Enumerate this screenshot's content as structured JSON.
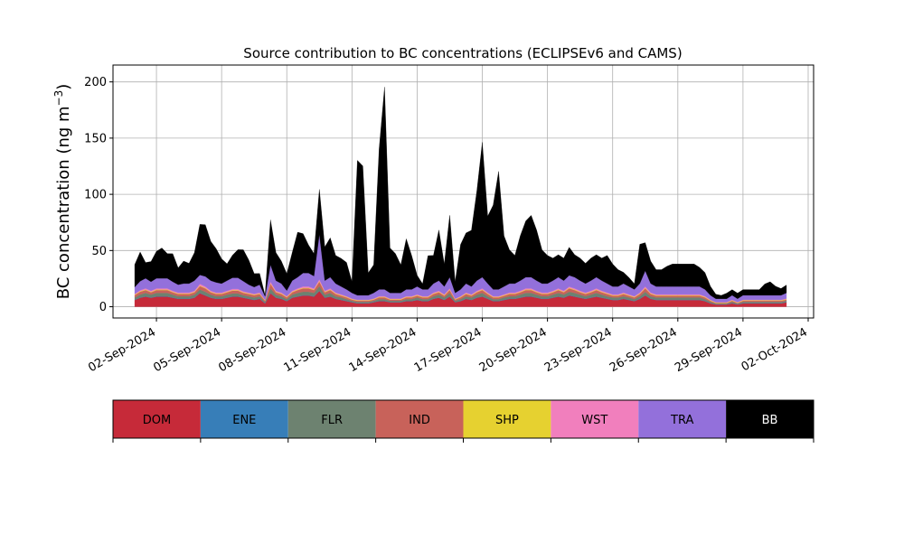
{
  "chart_data": {
    "type": "area",
    "title": "Source contribution to BC concentrations (ECLIPSEv6 and CAMS)",
    "ylabel_main": "BC concentration (ng m",
    "ylabel_sup": "−3",
    "ylabel_close": ")",
    "ylim": [
      -10,
      215
    ],
    "yticks": [
      0,
      50,
      100,
      150,
      200
    ],
    "xlim": [
      "2024-08-31T00:00",
      "2024-10-02T06:00"
    ],
    "xticks": [
      "02-Sep-2024",
      "05-Sep-2024",
      "08-Sep-2024",
      "11-Sep-2024",
      "14-Sep-2024",
      "17-Sep-2024",
      "20-Sep-2024",
      "23-Sep-2024",
      "26-Sep-2024",
      "29-Sep-2024",
      "02-Oct-2024"
    ],
    "grid": true,
    "stacked": true,
    "x": [
      "2024-09-01T00:00",
      "2024-09-01T06:00",
      "2024-09-01T12:00",
      "2024-09-01T18:00",
      "2024-09-02T00:00",
      "2024-09-02T06:00",
      "2024-09-02T12:00",
      "2024-09-02T18:00",
      "2024-09-03T00:00",
      "2024-09-03T06:00",
      "2024-09-03T12:00",
      "2024-09-03T18:00",
      "2024-09-04T00:00",
      "2024-09-04T06:00",
      "2024-09-04T12:00",
      "2024-09-04T18:00",
      "2024-09-05T00:00",
      "2024-09-05T06:00",
      "2024-09-05T12:00",
      "2024-09-05T18:00",
      "2024-09-06T00:00",
      "2024-09-06T06:00",
      "2024-09-06T12:00",
      "2024-09-06T18:00",
      "2024-09-07T00:00",
      "2024-09-07T06:00",
      "2024-09-07T12:00",
      "2024-09-07T18:00",
      "2024-09-08T00:00",
      "2024-09-08T06:00",
      "2024-09-08T12:00",
      "2024-09-08T18:00",
      "2024-09-09T00:00",
      "2024-09-09T06:00",
      "2024-09-09T12:00",
      "2024-09-09T18:00",
      "2024-09-10T00:00",
      "2024-09-10T06:00",
      "2024-09-10T12:00",
      "2024-09-10T18:00",
      "2024-09-11T00:00",
      "2024-09-11T06:00",
      "2024-09-11T12:00",
      "2024-09-11T18:00",
      "2024-09-12T00:00",
      "2024-09-12T06:00",
      "2024-09-12T12:00",
      "2024-09-12T18:00",
      "2024-09-13T00:00",
      "2024-09-13T06:00",
      "2024-09-13T12:00",
      "2024-09-13T18:00",
      "2024-09-14T00:00",
      "2024-09-14T06:00",
      "2024-09-14T12:00",
      "2024-09-14T18:00",
      "2024-09-15T00:00",
      "2024-09-15T06:00",
      "2024-09-15T12:00",
      "2024-09-15T18:00",
      "2024-09-16T00:00",
      "2024-09-16T06:00",
      "2024-09-16T12:00",
      "2024-09-16T18:00",
      "2024-09-17T00:00",
      "2024-09-17T06:00",
      "2024-09-17T12:00",
      "2024-09-17T18:00",
      "2024-09-18T00:00",
      "2024-09-18T06:00",
      "2024-09-18T12:00",
      "2024-09-18T18:00",
      "2024-09-19T00:00",
      "2024-09-19T06:00",
      "2024-09-19T12:00",
      "2024-09-19T18:00",
      "2024-09-20T00:00",
      "2024-09-20T06:00",
      "2024-09-20T12:00",
      "2024-09-20T18:00",
      "2024-09-21T00:00",
      "2024-09-21T06:00",
      "2024-09-21T12:00",
      "2024-09-21T18:00",
      "2024-09-22T00:00",
      "2024-09-22T06:00",
      "2024-09-22T12:00",
      "2024-09-22T18:00",
      "2024-09-23T00:00",
      "2024-09-23T06:00",
      "2024-09-23T12:00",
      "2024-09-23T18:00",
      "2024-09-24T00:00",
      "2024-09-24T06:00",
      "2024-09-24T12:00",
      "2024-09-24T18:00",
      "2024-09-25T00:00",
      "2024-09-25T06:00",
      "2024-09-25T12:00",
      "2024-09-25T18:00",
      "2024-09-26T00:00",
      "2024-09-26T06:00",
      "2024-09-26T12:00",
      "2024-09-26T18:00",
      "2024-09-27T00:00",
      "2024-09-27T06:00",
      "2024-09-27T12:00",
      "2024-09-27T18:00",
      "2024-09-28T00:00",
      "2024-09-28T06:00",
      "2024-09-28T12:00",
      "2024-09-28T18:00",
      "2024-09-29T00:00",
      "2024-09-29T06:00",
      "2024-09-29T12:00",
      "2024-09-29T18:00",
      "2024-09-30T00:00",
      "2024-09-30T06:00",
      "2024-09-30T12:00",
      "2024-09-30T18:00",
      "2024-10-01T00:00"
    ],
    "series": [
      {
        "name": "DOM",
        "color": "#c62a39",
        "values": [
          6,
          8,
          9,
          8,
          9,
          9,
          9,
          8,
          7,
          7,
          7,
          8,
          12,
          10,
          8,
          7,
          7,
          8,
          9,
          9,
          8,
          7,
          6,
          7,
          3,
          12,
          8,
          7,
          5,
          8,
          9,
          10,
          10,
          9,
          14,
          8,
          9,
          7,
          6,
          5,
          4,
          3,
          3,
          3,
          4,
          5,
          5,
          4,
          4,
          4,
          5,
          5,
          6,
          5,
          5,
          7,
          8,
          6,
          9,
          4,
          5,
          7,
          6,
          8,
          9,
          7,
          5,
          5,
          6,
          7,
          7,
          8,
          9,
          9,
          8,
          7,
          7,
          8,
          9,
          8,
          10,
          9,
          8,
          7,
          8,
          9,
          8,
          7,
          6,
          6,
          7,
          6,
          5,
          7,
          10,
          7,
          6,
          6,
          6,
          6,
          6,
          6,
          6,
          6,
          6,
          5,
          3,
          2,
          2,
          2,
          3,
          2,
          3,
          3,
          3,
          3,
          3,
          3,
          3,
          3,
          4
        ]
      },
      {
        "name": "ENE",
        "color": "#377eb8",
        "values": [
          0.3,
          0.3,
          0.3,
          0.3,
          0.3,
          0.3,
          0.3,
          0.3,
          0.3,
          0.3,
          0.3,
          0.3,
          0.3,
          0.3,
          0.3,
          0.3,
          0.3,
          0.3,
          0.3,
          0.3,
          0.3,
          0.3,
          0.3,
          0.3,
          0.3,
          0.3,
          0.3,
          0.3,
          0.3,
          0.3,
          0.3,
          0.3,
          0.3,
          0.3,
          0.3,
          0.3,
          0.3,
          0.3,
          0.3,
          0.3,
          0.3,
          0.3,
          0.3,
          0.3,
          0.3,
          0.3,
          0.3,
          0.3,
          0.3,
          0.3,
          0.3,
          0.3,
          0.3,
          0.3,
          0.3,
          0.3,
          0.3,
          0.3,
          0.3,
          0.3,
          0.3,
          0.3,
          0.3,
          0.3,
          0.3,
          0.3,
          0.3,
          0.3,
          0.3,
          0.3,
          0.3,
          0.3,
          0.3,
          0.3,
          0.3,
          0.3,
          0.3,
          0.3,
          0.3,
          0.3,
          0.3,
          0.3,
          0.3,
          0.3,
          0.3,
          0.3,
          0.3,
          0.3,
          0.3,
          0.3,
          0.3,
          0.3,
          0.3,
          0.3,
          0.3,
          0.3,
          0.3,
          0.3,
          0.3,
          0.3,
          0.3,
          0.3,
          0.3,
          0.3,
          0.3,
          0.3,
          0.3,
          0.3,
          0.3,
          0.3,
          0.3,
          0.3,
          0.3,
          0.3,
          0.3,
          0.3,
          0.3,
          0.3,
          0.3,
          0.3,
          0.3
        ]
      },
      {
        "name": "FLR",
        "color": "#6d8270",
        "values": [
          2,
          2.5,
          3,
          2.5,
          3,
          3,
          3,
          2.5,
          2,
          2,
          2,
          2.5,
          3,
          3,
          2.5,
          2,
          2,
          2.5,
          2.5,
          2.5,
          2,
          2,
          2,
          2,
          1,
          4,
          2.5,
          2,
          1.5,
          2.5,
          3,
          3,
          3,
          3,
          4,
          2.5,
          3,
          2,
          2,
          1.5,
          1,
          1,
          1,
          1,
          1,
          1.5,
          1.5,
          1,
          1,
          1,
          1.5,
          1.5,
          2,
          1.5,
          1.5,
          2,
          2.5,
          2,
          3,
          1,
          1.5,
          2,
          2,
          2.5,
          3,
          2,
          1.5,
          1.5,
          2,
          2,
          2,
          2.5,
          3,
          3,
          2.5,
          2,
          2,
          2.5,
          3,
          2.5,
          3,
          3,
          2.5,
          2,
          2.5,
          3,
          2.5,
          2,
          2,
          2,
          2,
          2,
          1.5,
          2,
          3,
          2,
          2,
          2,
          2,
          2,
          2,
          2,
          2,
          2,
          2,
          1.5,
          1,
          0.5,
          0.5,
          0.5,
          1,
          0.5,
          1,
          1,
          1,
          1,
          1,
          1,
          1,
          1,
          1
        ]
      },
      {
        "name": "IND",
        "color": "#c8625a",
        "values": [
          2,
          2.5,
          2.5,
          2,
          2.5,
          2.5,
          2.5,
          2,
          2,
          2,
          2,
          2,
          3,
          3,
          2,
          2,
          2,
          2,
          2.5,
          2.5,
          2,
          2,
          2,
          2,
          1,
          4,
          2,
          2,
          1.5,
          2,
          2.5,
          3,
          3,
          2.5,
          4,
          2,
          2.5,
          2,
          1.5,
          1.5,
          1,
          1,
          1,
          1,
          1,
          1.5,
          1.5,
          1,
          1,
          1,
          1.5,
          1.5,
          1.5,
          1.5,
          1.5,
          2,
          2,
          1.5,
          2.5,
          1,
          1.5,
          2,
          1.5,
          2,
          2.5,
          2,
          1.5,
          1.5,
          1.5,
          2,
          2,
          2,
          2.5,
          2.5,
          2,
          2,
          2,
          2,
          2.5,
          2,
          3,
          2.5,
          2,
          2,
          2,
          2.5,
          2,
          2,
          1.5,
          1.5,
          2,
          1.5,
          1.5,
          2,
          3,
          2,
          1.5,
          1.5,
          1.5,
          1.5,
          1.5,
          1.5,
          1.5,
          1.5,
          1.5,
          1.5,
          1,
          0.5,
          0.5,
          0.5,
          1,
          0.5,
          1,
          1,
          1,
          1,
          1,
          1,
          1,
          1,
          1
        ]
      },
      {
        "name": "SHP",
        "color": "#e6d130",
        "values": [
          0.5,
          0.5,
          0.5,
          0.5,
          0.5,
          0.5,
          0.5,
          0.5,
          0.5,
          0.5,
          0.5,
          0.5,
          0.5,
          0.5,
          0.5,
          0.5,
          0.5,
          0.5,
          0.5,
          0.5,
          0.5,
          0.5,
          0.5,
          0.5,
          0.5,
          0.5,
          0.5,
          0.5,
          0.5,
          0.5,
          0.5,
          0.5,
          0.5,
          0.5,
          0.5,
          0.5,
          0.5,
          0.5,
          0.5,
          0.5,
          0.5,
          0.5,
          0.5,
          0.5,
          0.5,
          0.5,
          0.5,
          0.5,
          0.5,
          0.5,
          0.5,
          0.5,
          0.5,
          0.5,
          0.5,
          0.5,
          0.5,
          0.5,
          0.5,
          0.5,
          0.5,
          0.5,
          0.5,
          0.5,
          0.5,
          0.5,
          0.5,
          0.5,
          0.5,
          0.5,
          0.5,
          0.5,
          0.5,
          0.5,
          0.5,
          0.5,
          0.5,
          0.5,
          0.5,
          0.5,
          0.5,
          0.5,
          0.5,
          0.5,
          0.5,
          0.5,
          0.5,
          0.5,
          0.5,
          0.5,
          0.5,
          0.5,
          0.5,
          0.5,
          0.5,
          0.5,
          0.5,
          0.5,
          0.5,
          0.5,
          0.5,
          0.5,
          0.5,
          0.5,
          0.5,
          0.5,
          0.5,
          0.5,
          0.5,
          0.5,
          0.5,
          0.5,
          0.5,
          0.5,
          0.5,
          0.5,
          0.5,
          0.5,
          0.5,
          0.5,
          0.5
        ]
      },
      {
        "name": "WST",
        "color": "#f17fbd",
        "values": [
          0.7,
          0.9,
          1,
          0.9,
          1,
          1,
          1,
          0.9,
          0.8,
          0.8,
          0.8,
          0.9,
          1.5,
          1.2,
          0.9,
          0.8,
          0.8,
          0.9,
          1,
          1,
          0.9,
          0.8,
          0.7,
          0.8,
          0.4,
          1.5,
          0.9,
          0.8,
          0.6,
          0.9,
          1,
          1.2,
          1.2,
          1,
          1.6,
          0.9,
          1,
          0.8,
          0.7,
          0.6,
          0.5,
          0.4,
          0.4,
          0.4,
          0.5,
          0.6,
          0.6,
          0.5,
          0.5,
          0.5,
          0.6,
          0.6,
          0.7,
          0.6,
          0.6,
          0.8,
          0.9,
          0.7,
          1,
          0.5,
          0.6,
          0.8,
          0.7,
          0.9,
          1,
          0.8,
          0.6,
          0.6,
          0.7,
          0.8,
          0.8,
          0.9,
          1,
          1,
          0.9,
          0.8,
          0.8,
          0.9,
          1,
          0.9,
          1.1,
          1,
          0.9,
          0.8,
          0.9,
          1,
          0.9,
          0.8,
          0.7,
          0.7,
          0.8,
          0.7,
          0.6,
          0.8,
          1.2,
          0.8,
          0.7,
          0.7,
          0.7,
          0.7,
          0.7,
          0.7,
          0.7,
          0.7,
          0.7,
          0.6,
          0.4,
          0.3,
          0.3,
          0.3,
          0.4,
          0.3,
          0.4,
          0.4,
          0.4,
          0.4,
          0.4,
          0.4,
          0.4,
          0.4,
          0.5
        ]
      },
      {
        "name": "TRA",
        "color": "#9370db",
        "values": [
          6,
          8,
          9,
          8,
          9,
          9,
          9,
          8,
          7,
          8,
          8,
          9,
          8,
          9,
          9,
          9,
          8,
          9,
          10,
          10,
          9,
          7,
          6,
          7,
          3,
          15,
          9,
          8,
          5,
          9,
          10,
          12,
          12,
          11,
          40,
          9,
          10,
          8,
          7,
          6,
          5,
          4,
          4,
          4,
          5,
          6,
          6,
          5,
          5,
          5,
          6,
          6,
          7,
          6,
          6,
          8,
          9,
          7,
          10,
          5,
          6,
          8,
          7,
          9,
          10,
          8,
          6,
          6,
          7,
          8,
          8,
          9,
          10,
          10,
          9,
          8,
          8,
          9,
          10,
          9,
          10,
          10,
          9,
          8,
          9,
          10,
          9,
          8,
          7,
          7,
          8,
          7,
          6,
          8,
          14,
          8,
          7,
          7,
          7,
          7,
          7,
          7,
          7,
          7,
          7,
          6,
          4,
          3,
          3,
          3,
          4,
          3,
          4,
          4,
          4,
          4,
          4,
          4,
          4,
          4,
          5
        ]
      },
      {
        "name": "BB",
        "color": "#000000",
        "values": [
          20,
          26,
          14,
          18,
          24,
          27,
          22,
          25,
          15,
          20,
          18,
          25,
          45,
          46,
          35,
          30,
          22,
          15,
          20,
          25,
          28,
          22,
          12,
          10,
          1,
          40,
          25,
          20,
          15,
          25,
          40,
          35,
          25,
          20,
          40,
          30,
          35,
          25,
          25,
          24,
          10,
          120,
          115,
          20,
          25,
          125,
          180,
          40,
          35,
          25,
          45,
          30,
          10,
          5,
          30,
          25,
          45,
          20,
          55,
          10,
          40,
          45,
          50,
          80,
          120,
          60,
          75,
          105,
          45,
          30,
          25,
          40,
          50,
          55,
          45,
          30,
          25,
          20,
          20,
          20,
          25,
          20,
          20,
          18,
          20,
          20,
          20,
          25,
          20,
          15,
          10,
          8,
          5,
          35,
          25,
          20,
          15,
          15,
          18,
          20,
          20,
          20,
          20,
          20,
          17,
          15,
          8,
          4,
          3,
          5,
          5,
          5,
          5,
          5,
          5,
          5,
          10,
          12,
          8,
          6,
          7
        ]
      }
    ]
  },
  "legend": {
    "items": [
      {
        "label": "DOM",
        "color": "#c62a39",
        "text_color": "#000000"
      },
      {
        "label": "ENE",
        "color": "#377eb8",
        "text_color": "#000000"
      },
      {
        "label": "FLR",
        "color": "#6d8270",
        "text_color": "#000000"
      },
      {
        "label": "IND",
        "color": "#c8625a",
        "text_color": "#000000"
      },
      {
        "label": "SHP",
        "color": "#e6d130",
        "text_color": "#000000"
      },
      {
        "label": "WST",
        "color": "#f17fbd",
        "text_color": "#000000"
      },
      {
        "label": "TRA",
        "color": "#9370db",
        "text_color": "#000000"
      },
      {
        "label": "BB",
        "color": "#000000",
        "text_color": "#ffffff"
      }
    ]
  }
}
